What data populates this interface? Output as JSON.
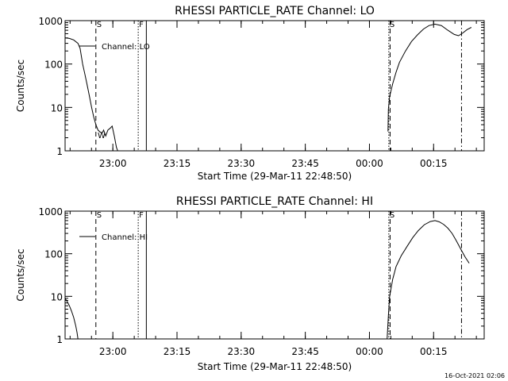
{
  "chart_data": [
    {
      "type": "line",
      "title": "RHESSI PARTICLE_RATE Channel: LO",
      "xlabel": "Start Time (29-Mar-11 22:48:50)",
      "ylabel": "Counts/sec",
      "yscale": "log",
      "ylim": [
        1,
        1000
      ],
      "xlim_min": [
        0,
        98
      ],
      "x_tick_labels": [
        "23:00",
        "23:15",
        "23:30",
        "23:45",
        "00:00",
        "00:15"
      ],
      "x_ticks_min": [
        11.17,
        26.17,
        41.17,
        56.17,
        71.17,
        86.17
      ],
      "y_tick_labels": [
        "1",
        "10",
        "100",
        "1000"
      ],
      "y_ticks": [
        1,
        10,
        100,
        1000
      ],
      "legend": {
        "label": "Channel: LO",
        "position": "top-left"
      },
      "markers": [
        {
          "type": "dashed",
          "x_min": 7.2,
          "label": "S"
        },
        {
          "type": "dotted",
          "x_min": 17.1,
          "label": "F"
        },
        {
          "type": "solid",
          "x_min": 19.0,
          "label": ""
        },
        {
          "type": "dotted",
          "x_min": 75.7,
          "label": "S"
        },
        {
          "type": "dashdot",
          "x_min": 92.7,
          "label": ""
        },
        {
          "type": "dashed",
          "x_min": 76.0,
          "label": ""
        }
      ],
      "annotations": [
        {
          "text": "W",
          "x_min": 7.6,
          "y": 2.3
        }
      ],
      "series": [
        {
          "segments": [
            [
              [
                0,
                400
              ],
              [
                1,
                390
              ],
              [
                2,
                360
              ],
              [
                3,
                300
              ],
              [
                3.5,
                230
              ],
              [
                4.1,
                100
              ],
              [
                4.6,
                60
              ],
              [
                5.1,
                35
              ],
              [
                5.7,
                18
              ],
              [
                6.2,
                10
              ],
              [
                6.7,
                6
              ],
              [
                7.2,
                4
              ],
              [
                7.7,
                3
              ],
              [
                8.2,
                2.7
              ],
              [
                8.7,
                2.6
              ],
              [
                9.0,
                3.0
              ],
              [
                9.5,
                2.2
              ],
              [
                10.0,
                3.0
              ],
              [
                10.5,
                3.3
              ],
              [
                11.0,
                3.7
              ],
              [
                11.5,
                2.2
              ],
              [
                12.0,
                1.2
              ],
              [
                12.3,
                0.9
              ]
            ],
            [
              [
                75.5,
                2.8
              ],
              [
                75.6,
                9
              ],
              [
                75.9,
                18
              ],
              [
                76.6,
                35
              ],
              [
                77.4,
                65
              ],
              [
                78.2,
                110
              ],
              [
                79.6,
                200
              ],
              [
                81.0,
                330
              ],
              [
                82.4,
                470
              ],
              [
                83.8,
                640
              ],
              [
                85.1,
                770
              ],
              [
                86.5,
                830
              ],
              [
                88.0,
                770
              ],
              [
                89.5,
                600
              ],
              [
                91.0,
                480
              ],
              [
                92.0,
                450
              ],
              [
                93.0,
                520
              ],
              [
                94.0,
                620
              ],
              [
                95.0,
                700
              ]
            ]
          ]
        }
      ]
    },
    {
      "type": "line",
      "title": "RHESSI PARTICLE_RATE Channel: HI",
      "xlabel": "Start Time (29-Mar-11 22:48:50)",
      "ylabel": "Counts/sec",
      "yscale": "log",
      "ylim": [
        1,
        1000
      ],
      "xlim_min": [
        0,
        98
      ],
      "x_tick_labels": [
        "23:00",
        "23:15",
        "23:30",
        "23:45",
        "00:00",
        "00:15"
      ],
      "x_ticks_min": [
        11.17,
        26.17,
        41.17,
        56.17,
        71.17,
        86.17
      ],
      "y_tick_labels": [
        "1",
        "10",
        "100",
        "1000"
      ],
      "y_ticks": [
        1,
        10,
        100,
        1000
      ],
      "legend": {
        "label": "Channel: HI",
        "position": "top-left"
      },
      "markers": [
        {
          "type": "dashed",
          "x_min": 7.2,
          "label": "S"
        },
        {
          "type": "dotted",
          "x_min": 17.1,
          "label": "F"
        },
        {
          "type": "solid",
          "x_min": 19.0,
          "label": ""
        },
        {
          "type": "dotted",
          "x_min": 75.7,
          "label": "S"
        },
        {
          "type": "dashdot",
          "x_min": 92.7,
          "label": ""
        },
        {
          "type": "dashed",
          "x_min": 76.0,
          "label": ""
        }
      ],
      "annotations": [],
      "series": [
        {
          "segments": [
            [
              [
                0,
                9.0
              ],
              [
                0.5,
                7.5
              ],
              [
                1.0,
                6.0
              ],
              [
                1.5,
                4.5
              ],
              [
                2.0,
                3.2
              ],
              [
                2.5,
                2.0
              ],
              [
                2.8,
                1.4
              ],
              [
                3.0,
                1.0
              ]
            ],
            [
              [
                75.3,
                1.0
              ],
              [
                75.6,
                3.5
              ],
              [
                75.9,
                10
              ],
              [
                76.6,
                25
              ],
              [
                77.4,
                50
              ],
              [
                78.6,
                90
              ],
              [
                80.0,
                150
              ],
              [
                81.3,
                240
              ],
              [
                82.6,
                350
              ],
              [
                84.0,
                480
              ],
              [
                85.4,
                570
              ],
              [
                86.5,
                600
              ],
              [
                87.5,
                560
              ],
              [
                88.5,
                490
              ],
              [
                89.5,
                400
              ],
              [
                90.5,
                300
              ],
              [
                91.5,
                200
              ],
              [
                92.5,
                130
              ],
              [
                93.5,
                85
              ],
              [
                94.5,
                60
              ]
            ]
          ]
        }
      ]
    }
  ],
  "footer": {
    "timestamp": "16-Oct-2021 02:06"
  }
}
